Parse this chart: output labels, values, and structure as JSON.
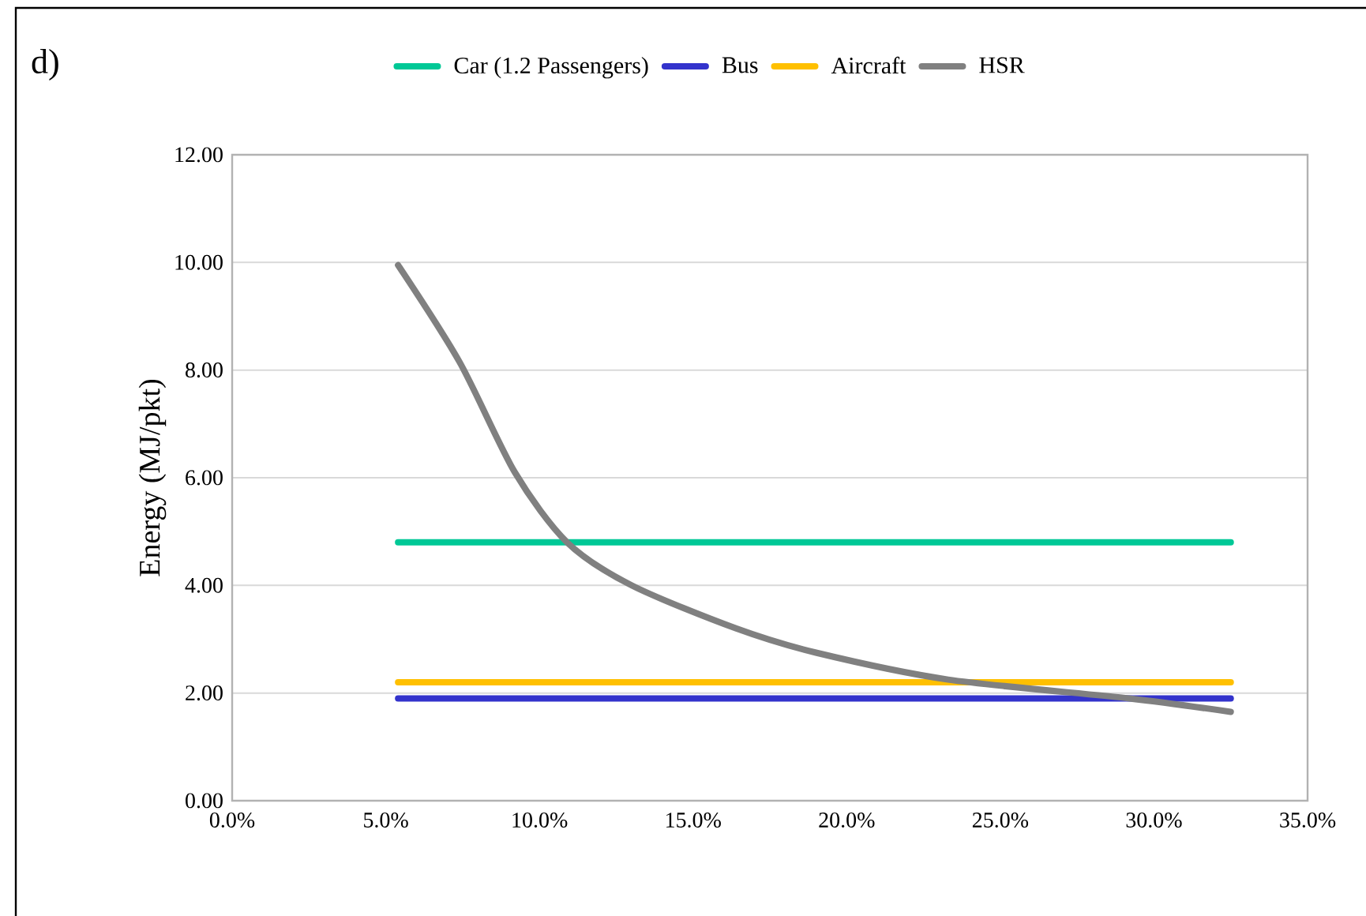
{
  "chart_data": {
    "type": "line",
    "title": "d)",
    "ylabel": "Energy (MJ/pkt)",
    "xlim": [
      0,
      35
    ],
    "ylim": [
      0,
      12
    ],
    "xticks": [
      {
        "value": 0,
        "label": "0.0%"
      },
      {
        "value": 5,
        "label": "5.0%"
      },
      {
        "value": 10,
        "label": "10.0%"
      },
      {
        "value": 15,
        "label": "15.0%"
      },
      {
        "value": 20,
        "label": "20.0%"
      },
      {
        "value": 25,
        "label": "25.0%"
      },
      {
        "value": 30,
        "label": "30.0%"
      },
      {
        "value": 35,
        "label": "35.0%"
      }
    ],
    "yticks": [
      {
        "value": 0,
        "label": "0.00"
      },
      {
        "value": 2,
        "label": "2.00"
      },
      {
        "value": 4,
        "label": "4.00"
      },
      {
        "value": 6,
        "label": "6.00"
      },
      {
        "value": 8,
        "label": "8.00"
      },
      {
        "value": 10,
        "label": "10.00"
      },
      {
        "value": 12,
        "label": "12.00"
      }
    ],
    "grid": "y",
    "legend": "top",
    "series": [
      {
        "name": "Car (1.2 Passengers)",
        "color": "#00c896",
        "x": [
          5.4,
          32.5
        ],
        "values": [
          4.8,
          4.8
        ]
      },
      {
        "name": "Bus",
        "color": "#3333cc",
        "x": [
          5.4,
          32.5
        ],
        "values": [
          1.9,
          1.9
        ]
      },
      {
        "name": "Aircraft",
        "color": "#ffc000",
        "x": [
          5.4,
          32.5
        ],
        "values": [
          2.2,
          2.2
        ]
      },
      {
        "name": "HSR",
        "color": "#808080",
        "x": [
          5.4,
          7.4,
          9.2,
          10.9,
          13.0,
          16.4,
          19.0,
          23.3,
          29.2,
          32.5
        ],
        "values": [
          9.95,
          8.15,
          6.1,
          4.8,
          4.0,
          3.2,
          2.75,
          2.25,
          1.9,
          1.65
        ]
      }
    ]
  }
}
